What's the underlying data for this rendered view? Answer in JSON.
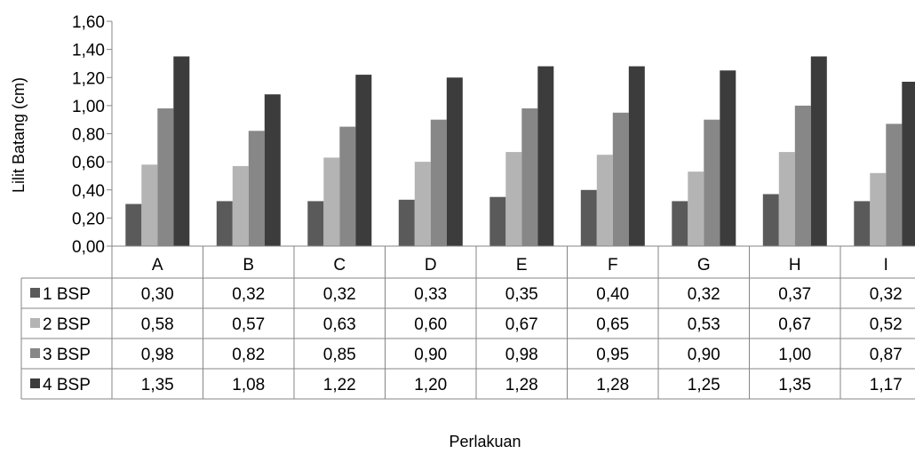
{
  "chart_data": {
    "type": "bar",
    "title": "",
    "xlabel": "Perlakuan",
    "ylabel": "Lilit Batang (cm)",
    "ylim": [
      0,
      1.6
    ],
    "ytick_values": [
      0,
      0.2,
      0.4,
      0.6,
      0.8,
      1.0,
      1.2,
      1.4,
      1.6
    ],
    "ytick_labels": [
      "0,00",
      "0,20",
      "0,40",
      "0,60",
      "0,80",
      "1,00",
      "1,20",
      "1,40",
      "1,60"
    ],
    "grid": false,
    "legend": "data-table",
    "categories": [
      "A",
      "B",
      "C",
      "D",
      "E",
      "F",
      "G",
      "H",
      "I"
    ],
    "series": [
      {
        "name": "1 BSP",
        "color": "#5a5a5a",
        "values": [
          0.3,
          0.32,
          0.32,
          0.33,
          0.35,
          0.4,
          0.32,
          0.37,
          0.32
        ],
        "labels": [
          "0,30",
          "0,32",
          "0,32",
          "0,33",
          "0,35",
          "0,40",
          "0,32",
          "0,37",
          "0,32"
        ]
      },
      {
        "name": "2 BSP",
        "color": "#b4b4b4",
        "values": [
          0.58,
          0.57,
          0.63,
          0.6,
          0.67,
          0.65,
          0.53,
          0.67,
          0.52
        ],
        "labels": [
          "0,58",
          "0,57",
          "0,63",
          "0,60",
          "0,67",
          "0,65",
          "0,53",
          "0,67",
          "0,52"
        ]
      },
      {
        "name": "3 BSP",
        "color": "#878787",
        "values": [
          0.98,
          0.82,
          0.85,
          0.9,
          0.98,
          0.95,
          0.9,
          1.0,
          0.87
        ],
        "labels": [
          "0,98",
          "0,82",
          "0,85",
          "0,90",
          "0,98",
          "0,95",
          "0,90",
          "1,00",
          "0,87"
        ]
      },
      {
        "name": "4 BSP",
        "color": "#3c3c3c",
        "values": [
          1.35,
          1.08,
          1.22,
          1.2,
          1.28,
          1.28,
          1.25,
          1.35,
          1.17
        ],
        "labels": [
          "1,35",
          "1,08",
          "1,22",
          "1,20",
          "1,28",
          "1,28",
          "1,25",
          "1,35",
          "1,17"
        ]
      }
    ]
  }
}
